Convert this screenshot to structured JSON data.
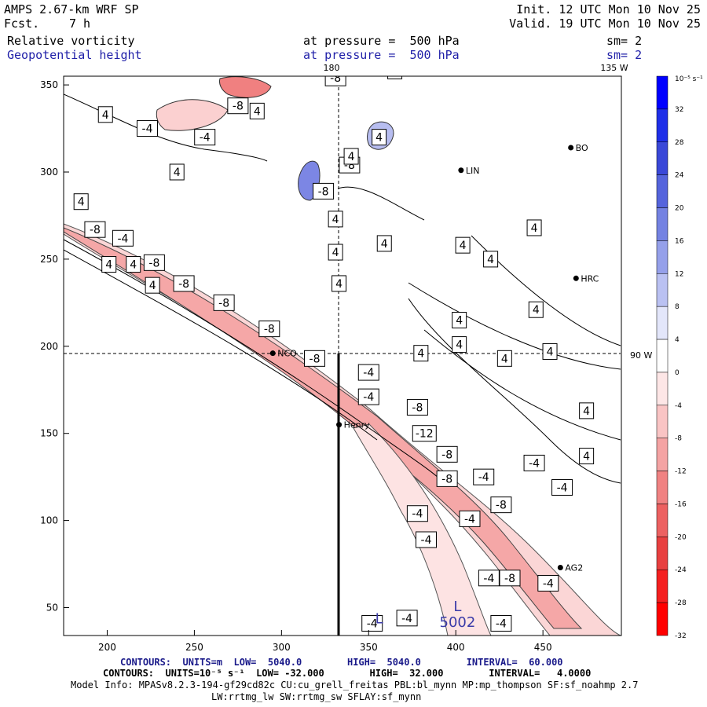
{
  "header": {
    "model": "AMPS 2.67-km WRF SP",
    "forecast_label": "Fcst.",
    "forecast_value": "7 h",
    "init": "Init. 12 UTC Mon 10 Nov 25",
    "valid": "Valid. 19 UTC Mon 10 Nov 25",
    "field1": "Relative vorticity",
    "field2": "Geopotential height",
    "pressure1": "at pressure =  500 hPa",
    "pressure2": "at pressure =  500 hPa",
    "sm1": "sm= 2",
    "sm2": "sm= 2"
  },
  "map_labels": {
    "lon_180": "180",
    "lon_135w": "135 W",
    "lon_90w": "90 W"
  },
  "x_ticks": [
    "200",
    "250",
    "300",
    "350",
    "400",
    "450"
  ],
  "y_ticks": [
    "350",
    "300",
    "250",
    "200",
    "150",
    "100",
    "50"
  ],
  "stations": [
    {
      "name": "NCO",
      "x": 295,
      "y": 196
    },
    {
      "name": "Henry",
      "x": 333,
      "y": 155
    },
    {
      "name": "HRC",
      "x": 469,
      "y": 239
    },
    {
      "name": "AG2",
      "x": 460,
      "y": 73
    },
    {
      "name": "LIN",
      "x": 403,
      "y": 301
    },
    {
      "name": "BO",
      "x": 466,
      "y": 314
    }
  ],
  "contour_labels": [
    {
      "t": "4",
      "x": 185,
      "y": 283
    },
    {
      "t": "-8",
      "x": 193,
      "y": 267
    },
    {
      "t": "-4",
      "x": 209,
      "y": 262
    },
    {
      "t": "4",
      "x": 201,
      "y": 247
    },
    {
      "t": "4",
      "x": 215,
      "y": 247
    },
    {
      "t": "-8",
      "x": 227,
      "y": 248
    },
    {
      "t": "-8",
      "x": 244,
      "y": 236
    },
    {
      "t": "4",
      "x": 226,
      "y": 235
    },
    {
      "t": "-8",
      "x": 267,
      "y": 225
    },
    {
      "t": "-8",
      "x": 293,
      "y": 210
    },
    {
      "t": "-8",
      "x": 319,
      "y": 193
    },
    {
      "t": "4",
      "x": 199,
      "y": 333
    },
    {
      "t": "-4",
      "x": 223,
      "y": 325
    },
    {
      "t": "-4",
      "x": 256,
      "y": 320
    },
    {
      "t": "4",
      "x": 240,
      "y": 300
    },
    {
      "t": "-8",
      "x": 275,
      "y": 338
    },
    {
      "t": "4",
      "x": 286,
      "y": 335
    },
    {
      "t": "-8",
      "x": 331,
      "y": 354
    },
    {
      "t": "4",
      "x": 331,
      "y": 273
    },
    {
      "t": "4",
      "x": 331,
      "y": 254
    },
    {
      "t": "4",
      "x": 333,
      "y": 236
    },
    {
      "t": "-8",
      "x": 324,
      "y": 289
    },
    {
      "t": "-8",
      "x": 339,
      "y": 304
    },
    {
      "t": "4",
      "x": 340,
      "y": 309
    },
    {
      "t": "4",
      "x": 356,
      "y": 320
    },
    {
      "t": "4",
      "x": 365,
      "y": 358
    },
    {
      "t": "4",
      "x": 359,
      "y": 259
    },
    {
      "t": "4",
      "x": 404,
      "y": 258
    },
    {
      "t": "4",
      "x": 420,
      "y": 250
    },
    {
      "t": "4",
      "x": 402,
      "y": 215
    },
    {
      "t": "4",
      "x": 402,
      "y": 201
    },
    {
      "t": "4",
      "x": 446,
      "y": 221
    },
    {
      "t": "4",
      "x": 454,
      "y": 197
    },
    {
      "t": "4",
      "x": 428,
      "y": 193
    },
    {
      "t": "4",
      "x": 380,
      "y": 196
    },
    {
      "t": "4",
      "x": 445,
      "y": 268
    },
    {
      "t": "-4",
      "x": 350,
      "y": 185
    },
    {
      "t": "-4",
      "x": 350,
      "y": 171
    },
    {
      "t": "-8",
      "x": 378,
      "y": 165
    },
    {
      "t": "-12",
      "x": 382,
      "y": 150
    },
    {
      "t": "-8",
      "x": 395,
      "y": 138
    },
    {
      "t": "-8",
      "x": 395,
      "y": 124
    },
    {
      "t": "-4",
      "x": 416,
      "y": 125
    },
    {
      "t": "-8",
      "x": 426,
      "y": 109
    },
    {
      "t": "-4",
      "x": 445,
      "y": 133
    },
    {
      "t": "-4",
      "x": 461,
      "y": 119
    },
    {
      "t": "4",
      "x": 475,
      "y": 163
    },
    {
      "t": "4",
      "x": 475,
      "y": 137
    },
    {
      "t": "-4",
      "x": 378,
      "y": 104
    },
    {
      "t": "-4",
      "x": 408,
      "y": 101
    },
    {
      "t": "-4",
      "x": 383,
      "y": 89
    },
    {
      "t": "-4",
      "x": 419,
      "y": 67
    },
    {
      "t": "-8",
      "x": 431,
      "y": 67
    },
    {
      "t": "-4",
      "x": 453,
      "y": 64
    },
    {
      "t": "-4",
      "x": 352,
      "y": 41
    },
    {
      "t": "-4",
      "x": 372,
      "y": 44
    },
    {
      "t": "-4",
      "x": 426,
      "y": 41
    }
  ],
  "low_markers": [
    {
      "t": "L",
      "x": 401,
      "y": 48
    },
    {
      "t": "5002",
      "x": 401,
      "y": 39
    },
    {
      "t": "L",
      "x": 356,
      "y": 41
    }
  ],
  "colorbar": {
    "unit_label": "10⁻⁵ s⁻¹",
    "levels": [
      "32",
      "28",
      "24",
      "20",
      "16",
      "12",
      "8",
      "4",
      "0",
      "-4",
      "-8",
      "-12",
      "-16",
      "-20",
      "-24",
      "-28",
      "-32"
    ],
    "colors": [
      "#0000ff",
      "#1f2fe8",
      "#3a48d8",
      "#5564dc",
      "#7482e2",
      "#95a0ea",
      "#bac1f2",
      "#e3e6fa",
      "#ffffff",
      "#fde6e6",
      "#f9c4c4",
      "#f4a3a3",
      "#f08282",
      "#ec6161",
      "#e84040",
      "#f42020",
      "#ff0000"
    ]
  },
  "footer": {
    "line1": "CONTOURS:  UNITS=m  LOW=  5040.0        HIGH=  5040.0        INTERVAL=  60.000",
    "line2": "CONTOURS:  UNITS=10⁻⁵ s⁻¹  LOW= -32.000        HIGH=  32.000        INTERVAL=   4.0000",
    "line3": "Model Info: MPASv8.2.3-194-gf29cd82c CU:cu_grell_freitas PBL:bl_mynn MP:mp_thompson SF:sf_noahmp 2.7",
    "line4": "LW:rrtmg_lw SW:rrtmg_sw SFLAY:sf_mynn"
  }
}
